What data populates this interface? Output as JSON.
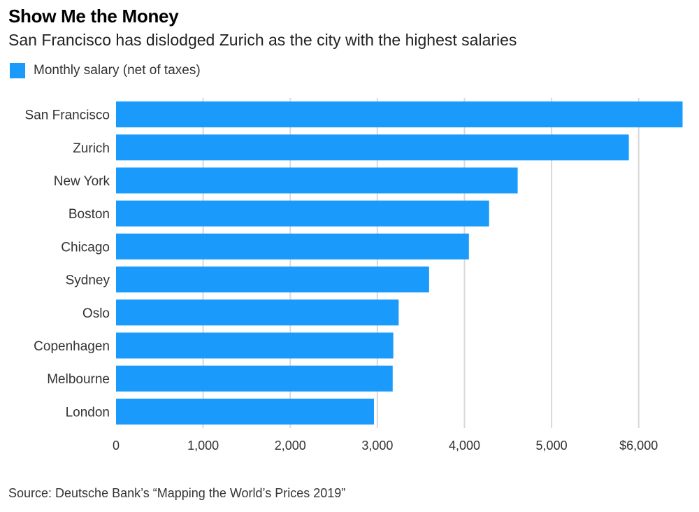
{
  "header": {
    "title": "Show Me the Money",
    "subtitle": "San Francisco has dislodged Zurich as the city with the highest salaries"
  },
  "footer": {
    "source": "Source: Deutsche Bank’s “Mapping the World’s Prices 2019”"
  },
  "colors": {
    "bar": "#1a9bfc",
    "grid": "#d9d9d9",
    "axis_text": "#333333"
  },
  "chart_data": {
    "type": "bar",
    "orientation": "horizontal",
    "categories": [
      "San Francisco",
      "Zurich",
      "New York",
      "Boston",
      "Chicago",
      "Sydney",
      "Oslo",
      "Copenhagen",
      "Melbourne",
      "London"
    ],
    "series": [
      {
        "name": "Monthly salary (net of taxes)",
        "values": [
          6504,
          5887,
          4611,
          4283,
          4051,
          3594,
          3245,
          3183,
          3176,
          2961
        ]
      }
    ],
    "xlim": [
      0,
      6500
    ],
    "xticks": [
      0,
      1000,
      2000,
      3000,
      4000,
      5000,
      6000
    ],
    "xtick_labels": [
      "0",
      "1,000",
      "2,000",
      "3,000",
      "4,000",
      "5,000",
      "$6,000"
    ],
    "grid": true,
    "legend_position": "top-left",
    "title": "Show Me the Money",
    "subtitle": "San Francisco has dislodged Zurich as the city with the highest salaries"
  }
}
